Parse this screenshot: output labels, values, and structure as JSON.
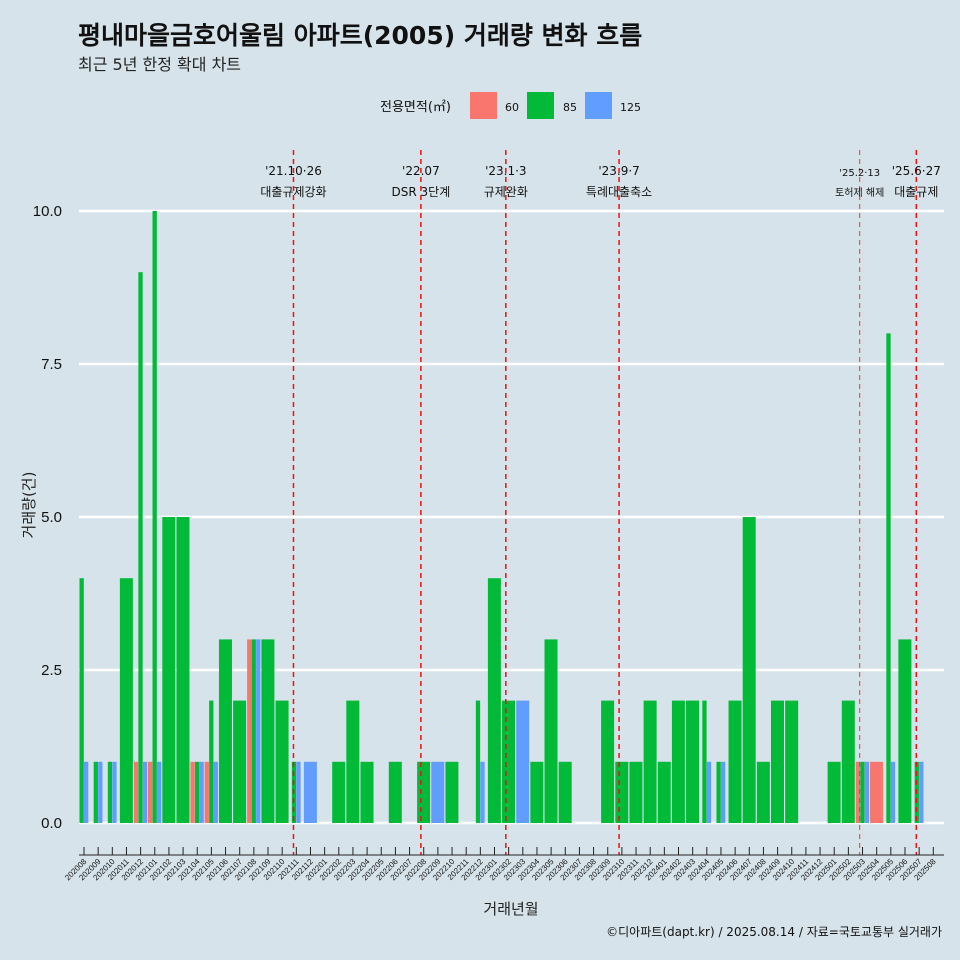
{
  "header": {
    "title": "평내마을금호어울림 아파트(2005) 거래량 변화 흐름",
    "subtitle": "최근 5년 한정 확대 차트"
  },
  "legend": {
    "title": "전용면적(㎡)",
    "items": [
      {
        "label": "60",
        "color": "#F8766D"
      },
      {
        "label": "85",
        "color": "#00BA38"
      },
      {
        "label": "125",
        "color": "#619CFF"
      }
    ]
  },
  "caption": "©디아파트(dapt.kr) / 2025.08.14 / 자료=국토교통부 실거래가",
  "chart_data": {
    "type": "bar",
    "xlabel": "거래년월",
    "ylabel": "거래량(건)",
    "ylim": [
      0,
      10
    ],
    "yticks": [
      "0.0",
      "2.5",
      "5.0",
      "7.5",
      "10.0"
    ],
    "grid": "horizontal",
    "legend_position": "top",
    "categories": [
      "202008",
      "202009",
      "202010",
      "202011",
      "202012",
      "202101",
      "202102",
      "202103",
      "202104",
      "202105",
      "202106",
      "202107",
      "202108",
      "202109",
      "202110",
      "202111",
      "202112",
      "202201",
      "202202",
      "202203",
      "202204",
      "202205",
      "202206",
      "202207",
      "202208",
      "202209",
      "202210",
      "202211",
      "202212",
      "202301",
      "202302",
      "202303",
      "202304",
      "202305",
      "202306",
      "202307",
      "202308",
      "202309",
      "202310",
      "202311",
      "202312",
      "202401",
      "202402",
      "202403",
      "202404",
      "202405",
      "202406",
      "202407",
      "202408",
      "202409",
      "202410",
      "202411",
      "202412",
      "202501",
      "202502",
      "202503",
      "202504",
      "202505",
      "202506",
      "202507",
      "202508"
    ],
    "series": [
      {
        "name": "60",
        "color": "#F8766D",
        "values": [
          0,
          0,
          0,
          0,
          1,
          1,
          0,
          0,
          1,
          1,
          0,
          0,
          3,
          0,
          0,
          0,
          0,
          0,
          0,
          0,
          0,
          0,
          0,
          0,
          0,
          0,
          0,
          0,
          0,
          0,
          0,
          0,
          0,
          0,
          0,
          0,
          0,
          0,
          0,
          0,
          0,
          0,
          0,
          0,
          0,
          0,
          0,
          0,
          0,
          0,
          0,
          0,
          0,
          0,
          0,
          1,
          1,
          0,
          0,
          0,
          0
        ]
      },
      {
        "name": "85",
        "color": "#00BA38",
        "values": [
          4,
          1,
          1,
          4,
          9,
          10,
          5,
          5,
          1,
          2,
          3,
          2,
          3,
          3,
          2,
          1,
          0,
          0,
          1,
          2,
          1,
          0,
          1,
          0,
          1,
          0,
          1,
          0,
          2,
          4,
          2,
          0,
          1,
          3,
          1,
          0,
          0,
          2,
          1,
          1,
          2,
          1,
          2,
          2,
          2,
          1,
          2,
          5,
          1,
          2,
          2,
          0,
          0,
          1,
          2,
          1,
          0,
          8,
          3,
          1,
          0
        ]
      },
      {
        "name": "125",
        "color": "#619CFF",
        "values": [
          1,
          1,
          1,
          0,
          1,
          1,
          0,
          0,
          1,
          1,
          0,
          0,
          3,
          0,
          0,
          1,
          1,
          0,
          0,
          0,
          0,
          0,
          0,
          0,
          0,
          1,
          0,
          0,
          1,
          0,
          0,
          2,
          0,
          0,
          0,
          0,
          0,
          0,
          0,
          0,
          0,
          0,
          0,
          0,
          1,
          1,
          0,
          0,
          0,
          0,
          0,
          0,
          0,
          0,
          0,
          1,
          0,
          1,
          0,
          1,
          0
        ]
      }
    ],
    "events": [
      {
        "date_label": "'21.10·26",
        "name": "대출규제강화",
        "month_index": 14.8
      },
      {
        "date_label": "'22.07",
        "name": "DSR 3단계",
        "month_index": 23.8
      },
      {
        "date_label": "'23.1·3",
        "name": "규제완화",
        "month_index": 29.8
      },
      {
        "date_label": "'23.9·7",
        "name": "특례대출축소",
        "month_index": 37.8
      },
      {
        "date_label": "'25.2·13",
        "name": "토허제 해제",
        "month_index": 54.8
      },
      {
        "date_label": "'25.6·27",
        "name": "대출규제",
        "month_index": 58.8
      }
    ]
  }
}
